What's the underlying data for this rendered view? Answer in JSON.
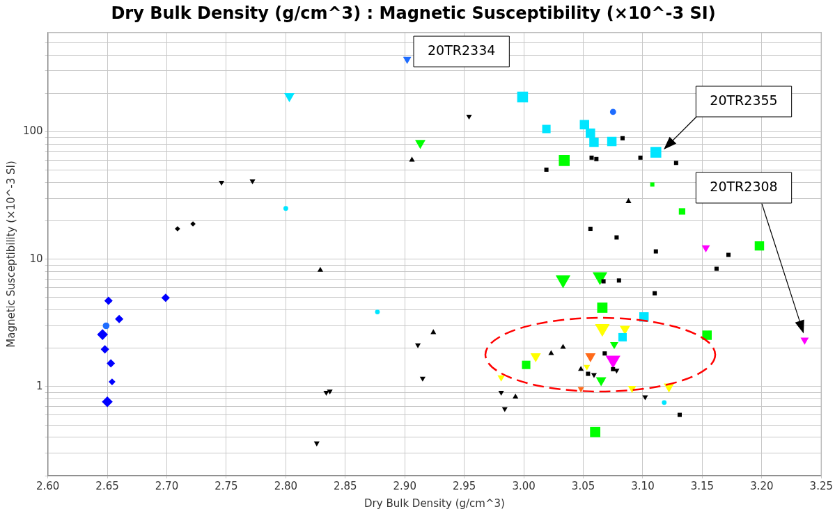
{
  "chart_data": {
    "type": "bubble",
    "title": "Dry Bulk Density (g/cm^3) : Magnetic Susceptibility (×10^-3 SI)",
    "xlabel": "Dry Bulk Density (g/cm^3)",
    "ylabel": "Magnetic Susceptibility (×10^-3 SI)",
    "xlim": [
      2.6,
      3.25
    ],
    "xticks": [
      {
        "value": 2.6,
        "label": "2.60"
      },
      {
        "value": 2.65,
        "label": "2.65"
      },
      {
        "value": 2.7,
        "label": "2.70"
      },
      {
        "value": 2.75,
        "label": "2.75"
      },
      {
        "value": 2.8,
        "label": "2.80"
      },
      {
        "value": 2.85,
        "label": "2.85"
      },
      {
        "value": 2.9,
        "label": "2.90"
      },
      {
        "value": 2.95,
        "label": "2.95"
      },
      {
        "value": 3.0,
        "label": "3.00"
      },
      {
        "value": 3.05,
        "label": "3.05"
      },
      {
        "value": 3.1,
        "label": "3.10"
      },
      {
        "value": 3.15,
        "label": "3.15"
      },
      {
        "value": 3.2,
        "label": "3.20"
      },
      {
        "value": 3.25,
        "label": "3.25"
      }
    ],
    "ylim": [
      0.2,
      600
    ],
    "log": "y",
    "yticks": [
      {
        "value": 0.2,
        "label": null
      },
      {
        "value": 0.3,
        "label": null
      },
      {
        "value": 0.4,
        "label": null
      },
      {
        "value": 0.5,
        "label": null
      },
      {
        "value": 0.6,
        "label": null
      },
      {
        "value": 0.7,
        "label": null
      },
      {
        "value": 0.8,
        "label": null
      },
      {
        "value": 0.9,
        "label": null
      },
      1,
      {
        "value": 2,
        "label": null
      },
      {
        "value": 3,
        "label": null
      },
      {
        "value": 4,
        "label": null
      },
      {
        "value": 5,
        "label": null
      },
      {
        "value": 6,
        "label": null
      },
      {
        "value": 7,
        "label": null
      },
      {
        "value": 8,
        "label": null
      },
      {
        "value": 9,
        "label": null
      },
      10,
      {
        "value": 20,
        "label": null
      },
      {
        "value": 30,
        "label": null
      },
      {
        "value": 40,
        "label": null
      },
      {
        "value": 50,
        "label": null
      },
      {
        "value": 60,
        "label": null
      },
      {
        "value": 70,
        "label": null
      },
      {
        "value": 80,
        "label": null
      },
      {
        "value": 90,
        "label": null
      },
      100,
      {
        "value": 200,
        "label": null
      },
      {
        "value": 300,
        "label": null
      },
      {
        "value": 400,
        "label": null
      },
      {
        "value": 500,
        "label": null
      }
    ],
    "grid": true,
    "legend": false,
    "annotations": [
      {
        "text": "20TR2334",
        "x": 2.902,
        "y": 371
      },
      "20TR2355",
      "20TR2308"
    ],
    "series": [
      {
        "color": "#000000",
        "marker": "square",
        "x": [
          3.019,
          3.083,
          3.057,
          3.061,
          3.098,
          3.128,
          3.056,
          3.078,
          3.111,
          3.172,
          3.162,
          3.067,
          3.08,
          3.11,
          3.068,
          3.054,
          3.075,
          3.131
        ],
        "values": [
          50.3,
          89,
          62.5,
          61,
          62.5,
          57,
          17.3,
          14.8,
          11.5,
          10.8,
          8.4,
          6.7,
          6.8,
          5.4,
          1.82,
          1.26,
          1.37,
          0.6
        ],
        "sizes": [
          0.15,
          0.15,
          0.15,
          0.15,
          0.15,
          0.15,
          0.15,
          0.15,
          0.15,
          0.15,
          0.15,
          0.15,
          0.15,
          0.15,
          0.15,
          0.15,
          0.15,
          0.15
        ]
      },
      {
        "color": "#000000",
        "marker": "triangle",
        "x": [
          2.829,
          2.906,
          3.088,
          2.924,
          3.023,
          3.033,
          3.048,
          2.993
        ],
        "values": [
          8.2,
          60,
          28.4,
          2.66,
          1.82,
          2.04,
          1.37,
          0.83
        ],
        "sizes": [
          0.12,
          0.12,
          0.12,
          0.12,
          0.12,
          0.12,
          0.12,
          0.12
        ]
      },
      {
        "color": "#000000",
        "marker": "triangle-down",
        "x": [
          2.746,
          2.772,
          2.954,
          2.834,
          2.837,
          2.826,
          2.911,
          2.915,
          2.981,
          2.984,
          3.059,
          3.078,
          3.102
        ],
        "values": [
          40,
          41,
          132,
          0.9,
          0.92,
          0.36,
          2.12,
          1.16,
          0.9,
          0.67,
          1.24,
          1.34,
          0.83
        ],
        "sizes": [
          0.12,
          0.12,
          0.12,
          0.12,
          0.12,
          0.12,
          0.12,
          0.12,
          0.12,
          0.12,
          0.12,
          0.12,
          0.12
        ]
      },
      {
        "color": "#000000",
        "marker": "diamond",
        "x": [
          2.709,
          2.722
        ],
        "values": [
          17.3,
          18.9
        ],
        "sizes": [
          0.12,
          0.12
        ]
      },
      {
        "color": "#00e5ff",
        "marker": "square",
        "x": [
          2.999,
          3.019,
          3.051,
          3.056,
          3.059,
          3.074,
          3.111,
          3.101,
          3.083
        ],
        "values": [
          187,
          105,
          113.6,
          97.5,
          82.6,
          83.7,
          69,
          3.52,
          2.44
        ],
        "sizes": [
          1,
          0.6,
          0.75,
          0.75,
          0.75,
          0.75,
          1,
          0.75,
          0.6
        ]
      },
      {
        "color": "#00e5ff",
        "marker": "triangle-down",
        "x": [
          2.803
        ],
        "values": [
          190
        ],
        "sizes": [
          0.4
        ]
      },
      {
        "color": "#00e5ff",
        "marker": "circle",
        "x": [
          2.8,
          2.877,
          3.118
        ],
        "values": [
          25,
          3.85,
          0.75
        ],
        "sizes": [
          0.15,
          0.15,
          0.15
        ]
      },
      {
        "color": "#00ff00",
        "marker": "square",
        "x": [
          3.034,
          3.108,
          3.133,
          3.198,
          3.066,
          3.154,
          3.002,
          3.06
        ],
        "values": [
          59.4,
          38.5,
          23.7,
          12.7,
          4.16,
          2.53,
          1.48,
          0.44
        ],
        "sizes": [
          1,
          0.15,
          0.35,
          0.75,
          0.9,
          0.75,
          0.6,
          0.9
        ]
      },
      {
        "color": "#00ff00",
        "marker": "triangle-down",
        "x": [
          2.913,
          3.033,
          3.064,
          3.076,
          3.065
        ],
        "values": [
          81.6,
          6.9,
          7.3,
          2.14,
          1.12
        ],
        "sizes": [
          0.4,
          0.8,
          0.8,
          0.25,
          0.4
        ]
      },
      {
        "color": "#ffff00",
        "marker": "triangle-down",
        "x": [
          3.066,
          3.085,
          3.01,
          3.053,
          3.091,
          3.122,
          2.981
        ],
        "values": [
          2.87,
          2.84,
          1.73,
          1.43,
          0.97,
          1.0,
          1.18
        ],
        "sizes": [
          0.8,
          0.4,
          0.4,
          0.15,
          0.25,
          0.4,
          0.2
        ]
      },
      {
        "color": "#ff6a1a",
        "marker": "triangle-down",
        "x": [
          3.056,
          3.048
        ],
        "values": [
          1.73,
          0.96
        ],
        "sizes": [
          0.4,
          0.15
        ]
      },
      {
        "color": "#ff00ff",
        "marker": "triangle-down",
        "x": [
          3.153,
          3.236,
          3.075
        ],
        "values": [
          12.3,
          2.32,
          1.62
        ],
        "sizes": [
          0.25,
          0.25,
          0.8
        ]
      },
      {
        "color": "#0000ff",
        "marker": "diamond",
        "x": [
          2.651,
          2.699,
          2.66,
          2.646,
          2.648,
          2.653,
          2.654,
          2.65
        ],
        "values": [
          4.72,
          4.97,
          3.39,
          2.56,
          1.96,
          1.52,
          1.09,
          0.76
        ],
        "sizes": [
          0.3,
          0.3,
          0.3,
          0.5,
          0.3,
          0.3,
          0.2,
          0.5
        ]
      },
      {
        "color": "#1e6cff",
        "marker": "triangle-down",
        "x": [
          2.902
        ],
        "values": [
          371
        ],
        "sizes": [
          0.25
        ]
      },
      {
        "color": "#1e6cff",
        "marker": "circle",
        "x": [
          3.075,
          2.649
        ],
        "values": [
          143,
          3.0
        ],
        "sizes": [
          0.25,
          0.3
        ]
      }
    ]
  }
}
